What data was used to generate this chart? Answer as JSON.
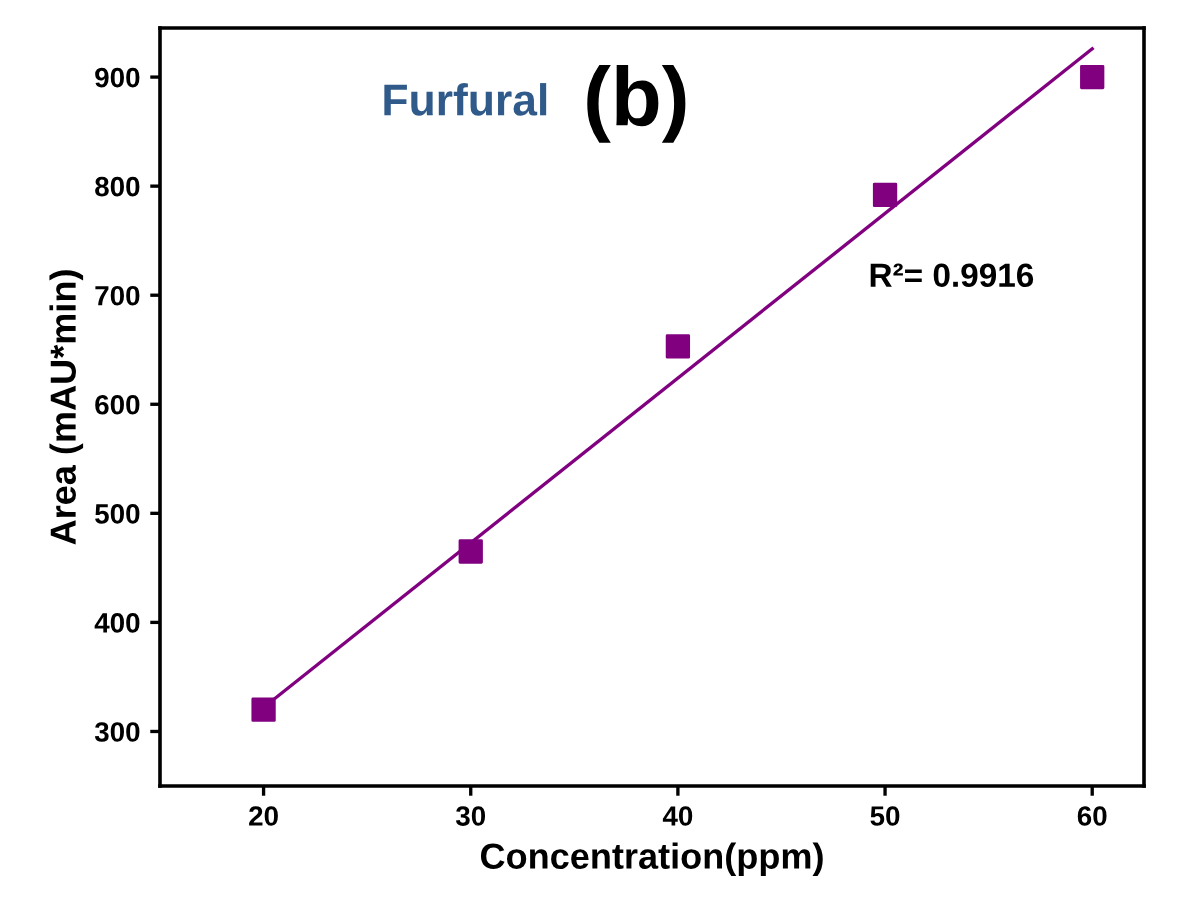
{
  "chart_data": {
    "type": "scatter",
    "xlabel": "Concentration(ppm)",
    "ylabel": "Area (mAU*min)",
    "x": [
      20,
      30,
      40,
      50,
      60
    ],
    "series": [
      {
        "color": "#800080",
        "marker": "square",
        "values": [
          320,
          465,
          653,
          792,
          900
        ]
      },
      {
        "type": "line",
        "color": "#800080",
        "marker": "none",
        "x": [
          20,
          60
        ],
        "values": [
          322,
          926
        ]
      }
    ],
    "xlim": [
      15,
      62.5
    ],
    "xticks": [
      20,
      30,
      40,
      50,
      60
    ],
    "ylim": [
      250,
      945
    ],
    "yticks": [
      300,
      400,
      500,
      600,
      700,
      800,
      900
    ],
    "annotations": [
      "Furfural",
      "(b)",
      "R²= 0.9916"
    ],
    "grid": false,
    "legend": false
  }
}
